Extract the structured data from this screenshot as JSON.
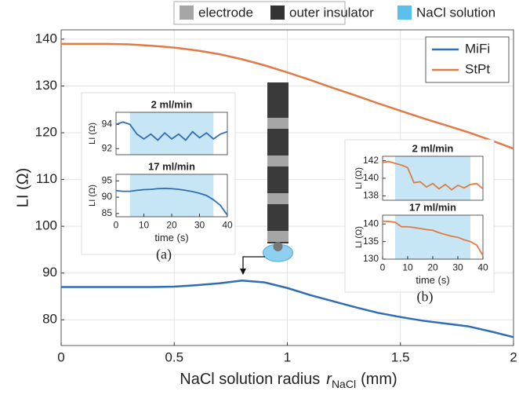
{
  "chart_data": [
    {
      "type": "line",
      "ylabel": "LI (Ω)",
      "xlabel": {
        "text": "NaCl solution radius",
        "var": "r",
        "sub": "NaCl",
        "unit": "(mm)"
      },
      "xlim": [
        0,
        2
      ],
      "ylim": [
        74.5,
        142
      ],
      "xticks": [
        0,
        0.5,
        1,
        1.5,
        2
      ],
      "yticks": [
        80,
        90,
        100,
        110,
        120,
        130,
        140
      ],
      "grid": true,
      "legend": "upper right",
      "diagram_legend": [
        {
          "label": "electrode",
          "color": "#a6a6a6"
        },
        {
          "label": "outer insulator",
          "color": "#333333"
        },
        {
          "label": "NaCl solution",
          "color": "#5bc0eb"
        }
      ],
      "x": [
        0,
        0.1,
        0.2,
        0.3,
        0.4,
        0.5,
        0.6,
        0.7,
        0.8,
        0.9,
        1.0,
        1.1,
        1.2,
        1.3,
        1.4,
        1.5,
        1.6,
        1.7,
        1.8,
        1.9,
        2.0
      ],
      "series": [
        {
          "name": "MiFi",
          "color": "#2f6eb5",
          "values": [
            87,
            87,
            87,
            87,
            87,
            87.1,
            87.4,
            87.8,
            88.4,
            88.0,
            86.8,
            85.3,
            84.0,
            82.7,
            81.5,
            80.6,
            79.8,
            79.2,
            78.6,
            77.5,
            76.3
          ]
        },
        {
          "name": "StPt",
          "color": "#e07b45",
          "values": [
            139,
            139,
            139,
            138.9,
            138.6,
            138.2,
            137.6,
            136.8,
            135.7,
            134.4,
            132.9,
            131.3,
            129.6,
            128,
            126.3,
            124.7,
            123.1,
            121.6,
            120.1,
            118.4,
            116.6
          ]
        }
      ]
    },
    {
      "type": "line",
      "title": "2 ml/min",
      "ylabel": "LI (Ω)",
      "xlim": [
        0,
        40
      ],
      "ylim": [
        91.5,
        95
      ],
      "yticks": [
        92,
        94
      ],
      "shade": [
        5,
        35
      ],
      "shade_color": "#c6e6f6",
      "x": [
        0,
        2.5,
        5,
        7.5,
        10,
        12.5,
        15,
        17.5,
        20,
        22.5,
        25,
        27.5,
        30,
        32.5,
        35,
        37.5,
        40
      ],
      "series": [
        {
          "color": "#2f6eb5",
          "values": [
            94,
            94.2,
            94,
            93.2,
            92.8,
            93.2,
            92.7,
            93.3,
            92.8,
            93.2,
            92.7,
            93.4,
            92.9,
            93.3,
            92.8,
            93.2,
            93.4
          ]
        }
      ]
    },
    {
      "type": "line",
      "title": "17 ml/min",
      "ylabel": "LI (Ω)",
      "xlabel": "time (s)",
      "panel_label": "(a)",
      "xlim": [
        0,
        40
      ],
      "ylim": [
        84,
        97
      ],
      "xticks": [
        0,
        10,
        20,
        30,
        40
      ],
      "yticks": [
        85,
        90,
        95
      ],
      "shade": [
        5,
        35
      ],
      "shade_color": "#c6e6f6",
      "x": [
        0,
        2.5,
        5,
        7.5,
        10,
        12.5,
        15,
        17.5,
        20,
        22.5,
        25,
        27.5,
        30,
        32.5,
        35,
        37.5,
        40
      ],
      "series": [
        {
          "color": "#2f6eb5",
          "values": [
            92,
            91.8,
            91.8,
            92.1,
            92.3,
            92.4,
            92.6,
            92.7,
            92.6,
            92.4,
            92.1,
            91.7,
            91.2,
            90.5,
            89.2,
            87.5,
            84.5
          ]
        }
      ]
    },
    {
      "type": "line",
      "title": "2 ml/min",
      "ylabel": "LI (Ω)",
      "xlim": [
        0,
        40
      ],
      "ylim": [
        137.5,
        142.5
      ],
      "yticks": [
        138,
        140,
        142
      ],
      "shade": [
        5,
        35
      ],
      "shade_color": "#c6e6f6",
      "x": [
        0,
        2.5,
        5,
        7.5,
        10,
        12.5,
        15,
        17.5,
        20,
        22.5,
        25,
        27.5,
        30,
        32.5,
        35,
        37.5,
        40
      ],
      "series": [
        {
          "color": "#e07b45",
          "values": [
            141.8,
            141.9,
            141.7,
            141.5,
            141.2,
            139.5,
            139.6,
            139.0,
            139.4,
            138.8,
            139.3,
            138.7,
            139.2,
            138.9,
            139.3,
            139.4,
            138.8
          ]
        }
      ]
    },
    {
      "type": "line",
      "title": "17 ml/min",
      "ylabel": "LI (Ω)",
      "xlabel": "time (s)",
      "panel_label": "(b)",
      "xlim": [
        0,
        40
      ],
      "ylim": [
        130,
        142.5
      ],
      "xticks": [
        0,
        10,
        20,
        30,
        40
      ],
      "yticks": [
        130,
        135,
        140
      ],
      "shade": [
        5,
        35
      ],
      "shade_color": "#c6e6f6",
      "x": [
        0,
        2.5,
        5,
        7.5,
        10,
        12.5,
        15,
        17.5,
        20,
        22.5,
        25,
        27.5,
        30,
        32.5,
        35,
        37.5,
        40
      ],
      "series": [
        {
          "color": "#e07b45",
          "values": [
            140.8,
            140.7,
            140.5,
            139.2,
            139.2,
            139.0,
            138.7,
            138.4,
            138.2,
            137.5,
            137,
            136.5,
            136.2,
            135.5,
            135,
            134,
            131
          ]
        }
      ]
    }
  ]
}
